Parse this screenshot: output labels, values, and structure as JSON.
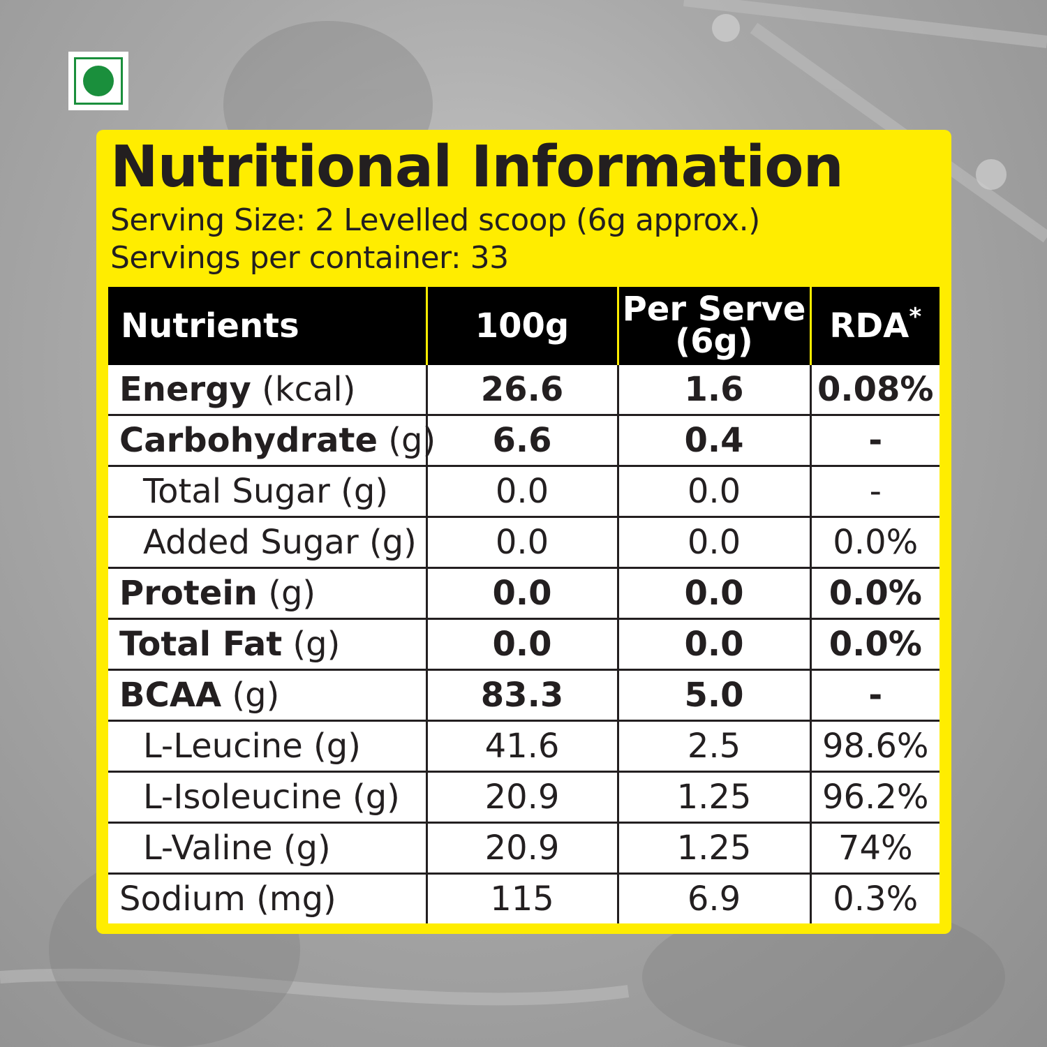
{
  "title": "Nutritional Information",
  "serving_size": "Serving Size: 2 Levelled scoop (6g approx.)",
  "servings_per_container": "Servings per container: 33",
  "table": {
    "headers": {
      "nutrients": "Nutrients",
      "per_100g": "100g",
      "per_serve_line1": "Per Serve",
      "per_serve_line2": "(6g)",
      "rda": "RDA",
      "rda_mark": "*"
    },
    "rows": [
      {
        "name": "Energy",
        "unit": " (kcal)",
        "v100": "26.6",
        "serve": "1.6",
        "rda": "0.08%"
      },
      {
        "name": "Carbohydrate",
        "unit": " (g)",
        "v100": "6.6",
        "serve": "0.4",
        "rda": "-"
      },
      {
        "name": "Total Sugar (g)",
        "v100": "0.0",
        "serve": "0.0",
        "rda": "-"
      },
      {
        "name": "Added Sugar (g)",
        "v100": "0.0",
        "serve": "0.0",
        "rda": "0.0%"
      },
      {
        "name": "Protein",
        "unit": " (g)",
        "v100": "0.0",
        "serve": "0.0",
        "rda": "0.0%"
      },
      {
        "name": "Total Fat",
        "unit": " (g)",
        "v100": "0.0",
        "serve": "0.0",
        "rda": "0.0%"
      },
      {
        "name": "BCAA",
        "unit": " (g)",
        "v100": "83.3",
        "serve": "5.0",
        "rda": "-"
      },
      {
        "name": "L-Leucine (g)",
        "v100": "41.6",
        "serve": "2.5",
        "rda": "98.6%"
      },
      {
        "name": "L-Isoleucine (g)",
        "v100": "20.9",
        "serve": "1.25",
        "rda": "96.2%"
      },
      {
        "name": "L-Valine (g)",
        "v100": "20.9",
        "serve": "1.25",
        "rda": "74%"
      },
      {
        "name": "Sodium (mg)",
        "v100": "115",
        "serve": "6.9",
        "rda": "0.3%"
      }
    ]
  },
  "colors": {
    "panel": "#ffed00",
    "header_bg": "#000000",
    "text": "#231f20",
    "veg_green": "#1a8f3c"
  }
}
